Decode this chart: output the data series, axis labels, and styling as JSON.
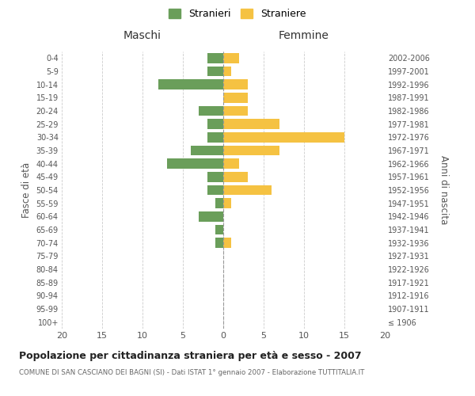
{
  "age_groups": [
    "100+",
    "95-99",
    "90-94",
    "85-89",
    "80-84",
    "75-79",
    "70-74",
    "65-69",
    "60-64",
    "55-59",
    "50-54",
    "45-49",
    "40-44",
    "35-39",
    "30-34",
    "25-29",
    "20-24",
    "15-19",
    "10-14",
    "5-9",
    "0-4"
  ],
  "birth_years": [
    "≤ 1906",
    "1907-1911",
    "1912-1916",
    "1917-1921",
    "1922-1926",
    "1927-1931",
    "1932-1936",
    "1937-1941",
    "1942-1946",
    "1947-1951",
    "1952-1956",
    "1957-1961",
    "1962-1966",
    "1967-1971",
    "1972-1976",
    "1977-1981",
    "1982-1986",
    "1987-1991",
    "1992-1996",
    "1997-2001",
    "2002-2006"
  ],
  "maschi": [
    0,
    0,
    0,
    0,
    0,
    0,
    1,
    1,
    3,
    1,
    2,
    2,
    7,
    4,
    2,
    2,
    3,
    0,
    8,
    2,
    2
  ],
  "femmine": [
    0,
    0,
    0,
    0,
    0,
    0,
    1,
    0,
    0,
    1,
    6,
    3,
    2,
    7,
    15,
    7,
    3,
    3,
    3,
    1,
    2
  ],
  "color_maschi": "#6a9e5a",
  "color_femmine": "#f5c242",
  "title": "Popolazione per cittadinanza straniera per età e sesso - 2007",
  "subtitle": "COMUNE DI SAN CASCIANO DEI BAGNI (SI) - Dati ISTAT 1° gennaio 2007 - Elaborazione TUTTITALIA.IT",
  "xlabel_left": "Maschi",
  "xlabel_right": "Femmine",
  "ylabel_left": "Fasce di età",
  "ylabel_right": "Anni di nascita",
  "legend_maschi": "Stranieri",
  "legend_femmine": "Straniere",
  "xlim": 20,
  "background_color": "#ffffff",
  "grid_color": "#cccccc"
}
